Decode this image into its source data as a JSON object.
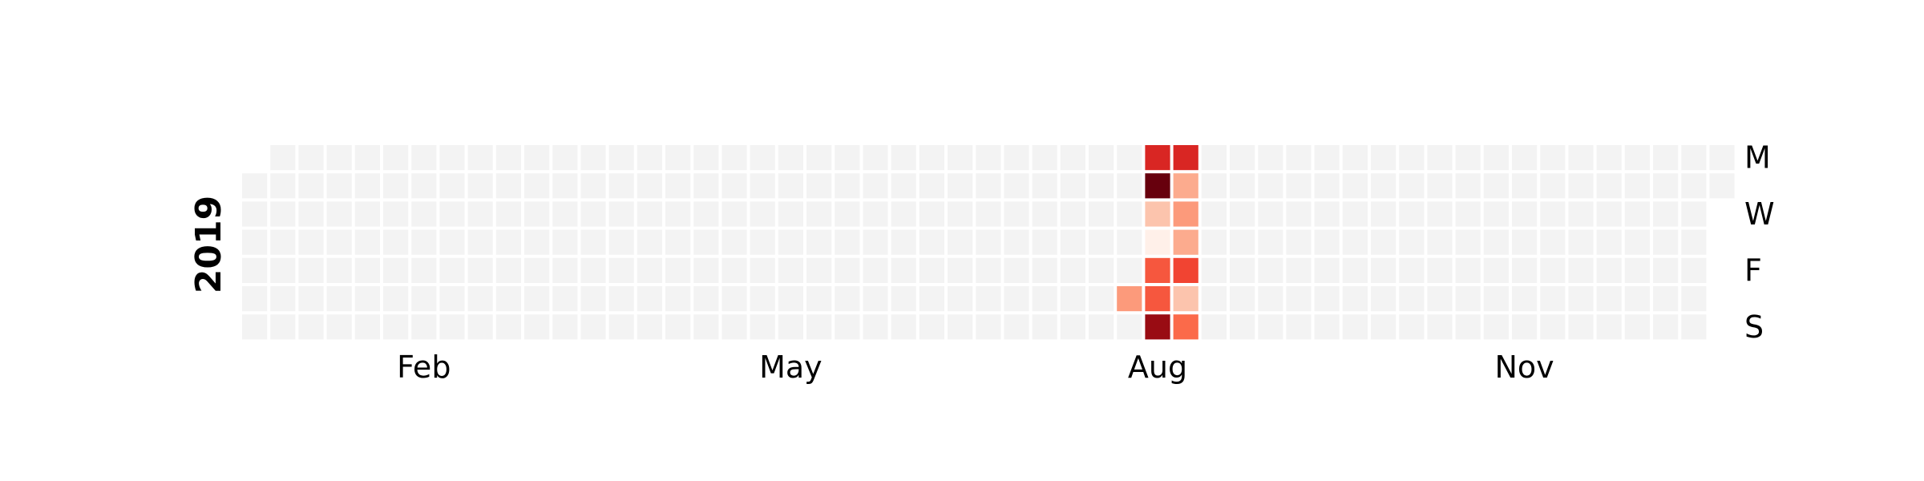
{
  "chart_data": {
    "type": "heatmap",
    "title": "",
    "year_label": "2019",
    "month_labels": [
      "Feb",
      "May",
      "Aug",
      "Nov"
    ],
    "weekday_labels": [
      "M",
      "W",
      "F",
      "S"
    ],
    "start_date": "2019-01-01",
    "end_date": "2019-12-31",
    "empty_color": "#f3f3f3",
    "colormap": "Reds",
    "vmin": 0,
    "vmax": 10,
    "values": [
      {
        "date": "2019-08-10",
        "value": 3.5
      },
      {
        "date": "2019-08-12",
        "value": 7
      },
      {
        "date": "2019-08-13",
        "value": 10
      },
      {
        "date": "2019-08-14",
        "value": 2.2
      },
      {
        "date": "2019-08-15",
        "value": 0.3
      },
      {
        "date": "2019-08-16",
        "value": 5.5
      },
      {
        "date": "2019-08-17",
        "value": 5.5
      },
      {
        "date": "2019-08-18",
        "value": 9
      },
      {
        "date": "2019-08-19",
        "value": 7
      },
      {
        "date": "2019-08-20",
        "value": 3
      },
      {
        "date": "2019-08-21",
        "value": 3.5
      },
      {
        "date": "2019-08-22",
        "value": 3
      },
      {
        "date": "2019-08-23",
        "value": 6
      },
      {
        "date": "2019-08-24",
        "value": 2.2
      },
      {
        "date": "2019-08-25",
        "value": 5
      }
    ]
  }
}
